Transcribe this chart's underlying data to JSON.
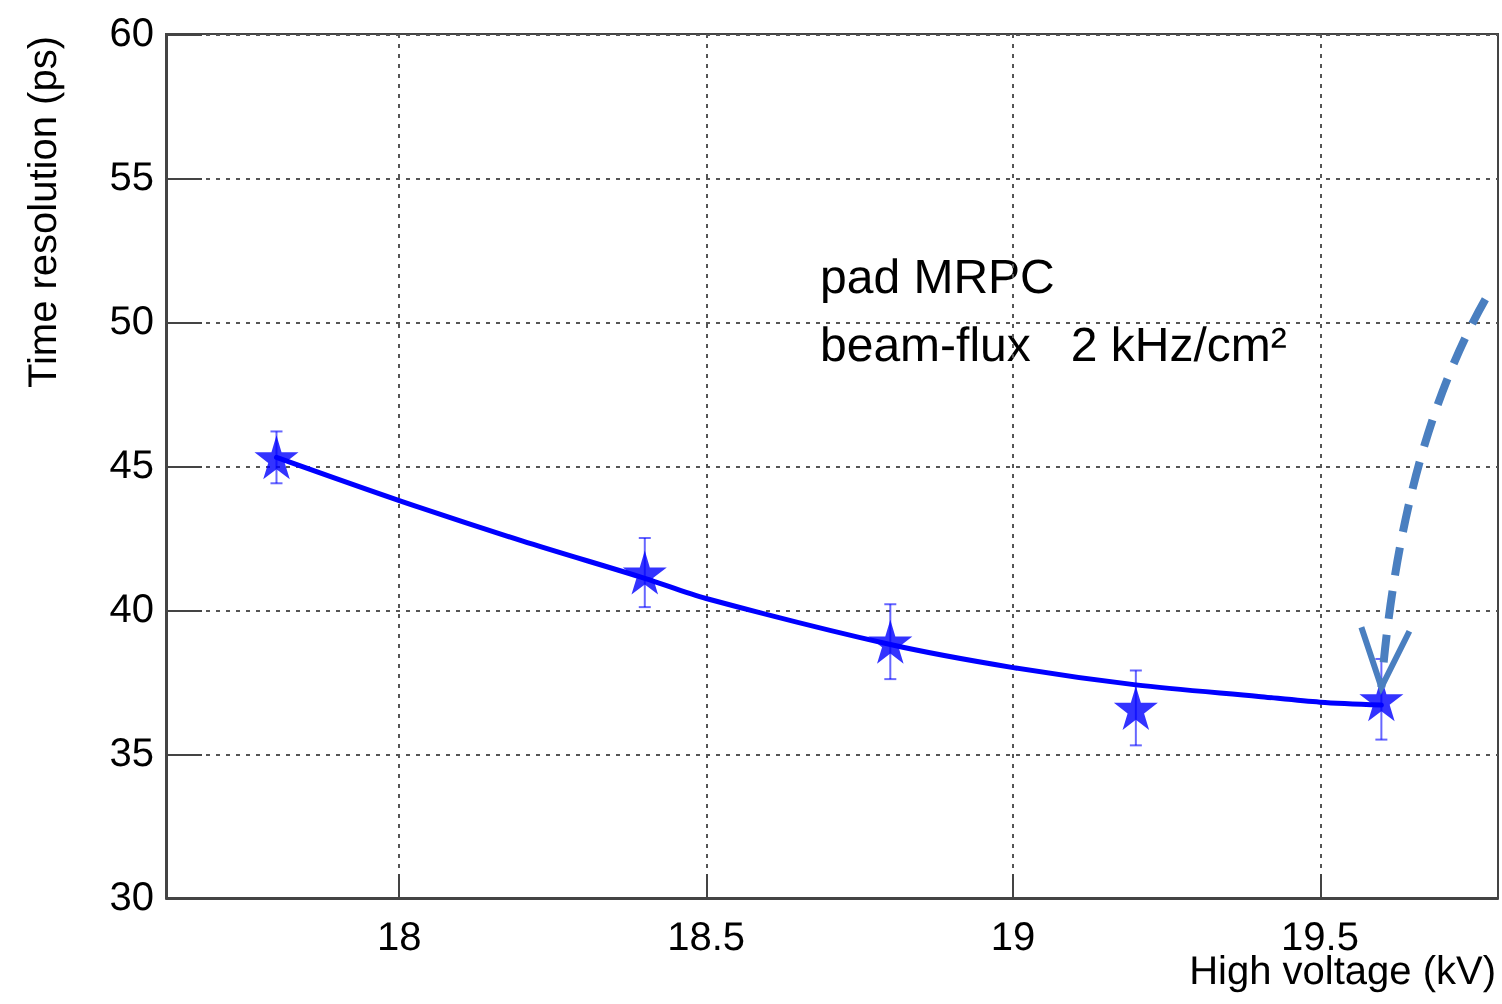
{
  "chart_data": {
    "type": "scatter",
    "xlabel": "High voltage (kV)",
    "ylabel": "Time resolution (ps)",
    "annotations": [
      "pad MRPC",
      "beam-flux   2 kHz/cm²"
    ],
    "series": [
      {
        "color": "#0000ff",
        "marker": "star",
        "x": [
          17.8,
          18.4,
          18.8,
          19.2,
          19.6
        ],
        "values": [
          45.3,
          41.3,
          38.9,
          36.6,
          36.9
        ],
        "errors": [
          0.9,
          1.2,
          1.3,
          1.3,
          1.4
        ]
      },
      {
        "type": "line",
        "color": "#0000ff",
        "marker": "none",
        "line_style": "solid",
        "x": [
          17.8,
          18.0,
          18.2,
          18.4,
          18.5,
          18.8,
          19.0,
          19.2,
          19.4,
          19.5,
          19.6
        ],
        "values": [
          45.3,
          43.8,
          42.4,
          41.1,
          40.4,
          38.8,
          38.0,
          37.4,
          37.0,
          36.8,
          36.7
        ]
      }
    ],
    "xlim": [
      17.62,
      19.79
    ],
    "xticks": [
      18,
      18.5,
      19,
      19.5
    ],
    "ylim": [
      30,
      60
    ],
    "yticks": [
      30,
      35,
      40,
      45,
      50,
      55,
      60
    ],
    "grid": true
  }
}
